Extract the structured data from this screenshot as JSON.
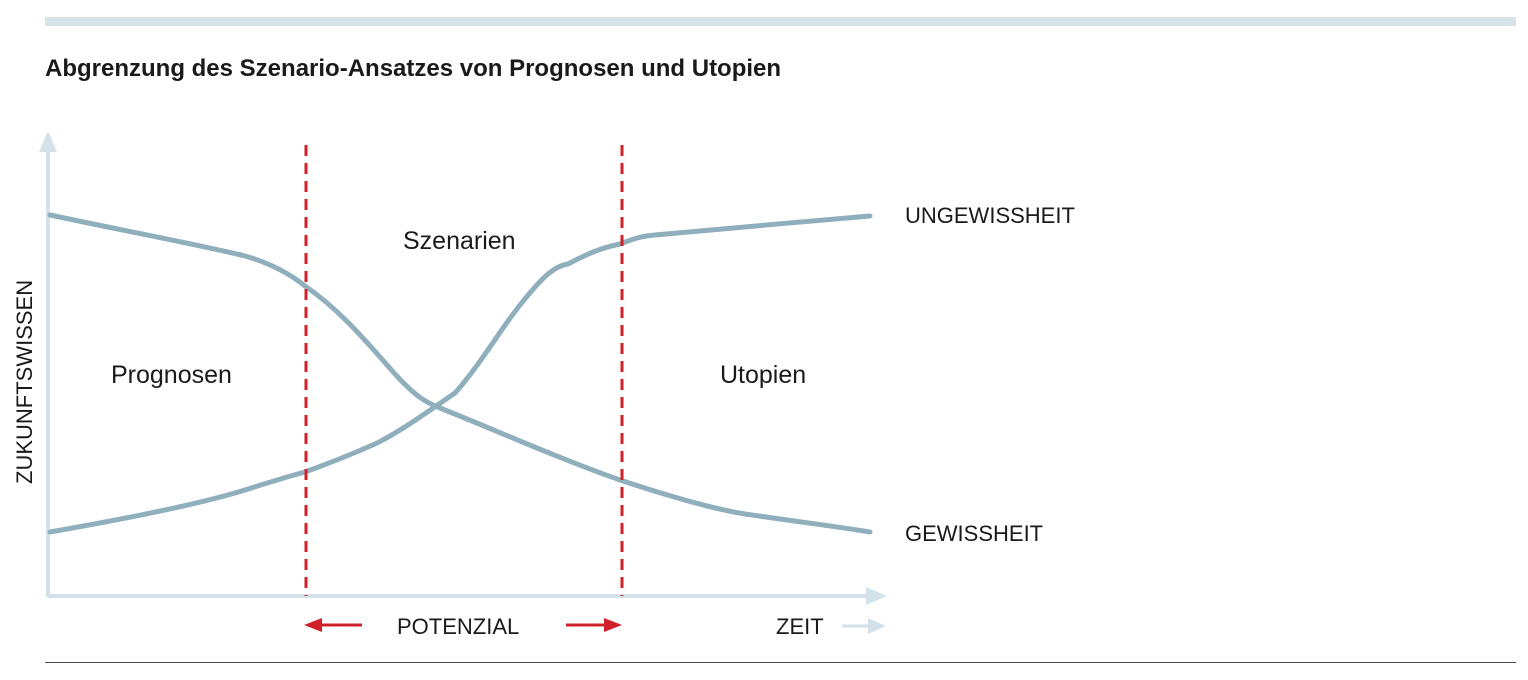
{
  "title": "Abgrenzung des Szenario-Ansatzes von Prognosen und Utopien",
  "axes": {
    "y_label": "ZUKUNFTSWISSEN",
    "x_label": "ZEIT"
  },
  "regions": {
    "left": "Prognosen",
    "middle": "Szenarien",
    "right": "Utopien"
  },
  "curves": {
    "rising_label": "UNGEWISSHEIT",
    "falling_label": "GEWISSHEIT"
  },
  "potential_label": "POTENZIAL",
  "colors": {
    "curve": "#8fafbc",
    "axis": "#d3e2e9",
    "divider": "#d0202a",
    "top_rule": "#d6e3e8"
  }
}
